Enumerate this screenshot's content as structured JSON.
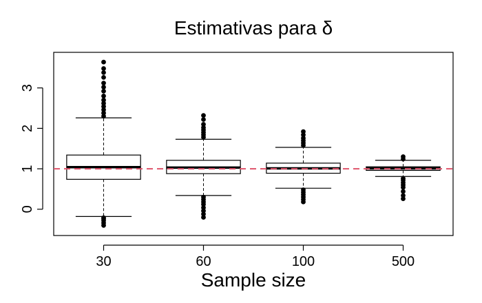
{
  "chart_data": {
    "type": "boxplot",
    "title": "Estimativas para δ",
    "xlabel": "Sample size",
    "ylabel": "",
    "categories": [
      "30",
      "60",
      "100",
      "500"
    ],
    "ylim": [
      -0.65,
      3.88
    ],
    "yticks": [
      0,
      1,
      2,
      3
    ],
    "reference_line": {
      "y": 1.0,
      "color": "#DF536B",
      "style": "dashed"
    },
    "boxes": [
      {
        "category": "30",
        "whisker_low": -0.18,
        "q1": 0.74,
        "median": 1.04,
        "q3": 1.34,
        "whisker_high": 2.26,
        "outliers_low": [
          -0.4,
          -0.34,
          -0.28,
          -0.24,
          -0.21
        ],
        "outliers_high": [
          2.3,
          2.38,
          2.46,
          2.54,
          2.62,
          2.7,
          2.8,
          2.92,
          3.02,
          3.12,
          3.26,
          3.38,
          3.48,
          3.64
        ]
      },
      {
        "category": "60",
        "whisker_low": 0.34,
        "q1": 0.88,
        "median": 1.03,
        "q3": 1.21,
        "whisker_high": 1.73,
        "outliers_low": [
          -0.2,
          -0.12,
          -0.04,
          0.04,
          0.12,
          0.18,
          0.24,
          0.3
        ],
        "outliers_high": [
          1.78,
          1.84,
          1.9,
          1.96,
          2.02,
          2.1,
          2.22,
          2.32
        ]
      },
      {
        "category": "100",
        "whisker_low": 0.52,
        "q1": 0.89,
        "median": 1.01,
        "q3": 1.14,
        "whisker_high": 1.53,
        "outliers_low": [
          0.18,
          0.24,
          0.3,
          0.36,
          0.42,
          0.48
        ],
        "outliers_high": [
          1.58,
          1.64,
          1.7,
          1.76,
          1.84,
          1.92
        ]
      },
      {
        "category": "500",
        "whisker_low": 0.81,
        "q1": 0.96,
        "median": 1.01,
        "q3": 1.05,
        "whisker_high": 1.21,
        "outliers_low": [
          0.26,
          0.34,
          0.44,
          0.54,
          0.6,
          0.66,
          0.72,
          0.76
        ],
        "outliers_high": [
          1.24,
          1.3
        ]
      }
    ],
    "grid": false,
    "legend": "none"
  }
}
